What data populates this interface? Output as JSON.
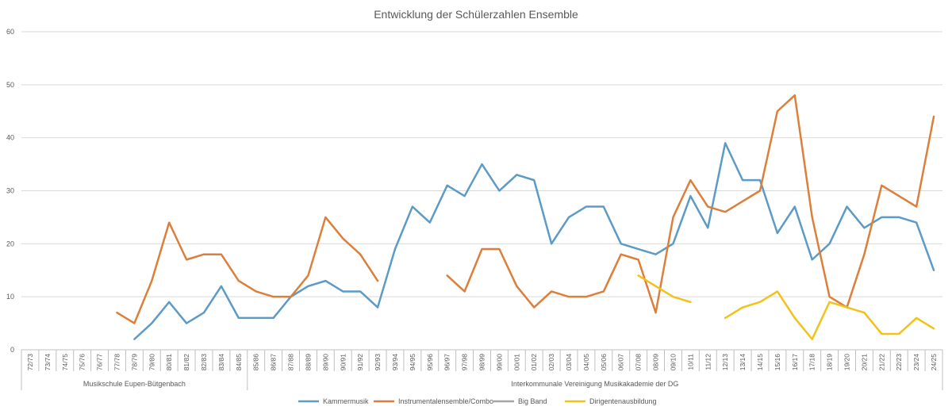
{
  "chart_data": {
    "type": "line",
    "title": "Entwicklung der Schülerzahlen Ensemble",
    "ylim": [
      0,
      60
    ],
    "yticks": [
      0,
      10,
      20,
      30,
      40,
      50,
      60
    ],
    "grid": true,
    "legend_position": "bottom",
    "categories": [
      "72/73",
      "73/74",
      "74/75",
      "75/76",
      "76/77",
      "77/78",
      "78/79",
      "79/80",
      "80/81",
      "81/82",
      "82/83",
      "83/84",
      "84/85",
      "85/86",
      "86/87",
      "87/88",
      "88/89",
      "89/90",
      "90/91",
      "91/92",
      "92/93",
      "93/94",
      "94/95",
      "95/96",
      "96/97",
      "97/98",
      "98/99",
      "99/00",
      "00/01",
      "01/02",
      "02/03",
      "03/04",
      "04/05",
      "05/06",
      "06/07",
      "07/08",
      "08/09",
      "09/10",
      "10/11",
      "11/12",
      "12/13",
      "13/14",
      "14/15",
      "15/16",
      "16/17",
      "17/18",
      "18/19",
      "19/20",
      "20/21",
      "21/22",
      "22/23",
      "23/24",
      "24/25"
    ],
    "category_groups": [
      {
        "label": "Musikschule Eupen-Bütgenbach",
        "start": 0,
        "end": 12
      },
      {
        "label": "Interkommunale Vereinigung Musikakademie der DG",
        "start": 13,
        "end": 52
      }
    ],
    "series": [
      {
        "name": "Kammermusik",
        "color": "#5b9bc6",
        "values": [
          null,
          null,
          null,
          null,
          null,
          null,
          2,
          5,
          9,
          5,
          7,
          12,
          6,
          6,
          6,
          10,
          12,
          13,
          11,
          11,
          8,
          19,
          27,
          24,
          31,
          29,
          35,
          30,
          33,
          32,
          20,
          25,
          27,
          27,
          20,
          19,
          18,
          20,
          29,
          23,
          39,
          32,
          32,
          22,
          27,
          17,
          20,
          27,
          23,
          25,
          25,
          24,
          15
        ]
      },
      {
        "name": "Instrumentalensemble/Combo",
        "color": "#dc7f3a",
        "values": [
          null,
          null,
          null,
          null,
          null,
          7,
          5,
          13,
          24,
          17,
          18,
          18,
          13,
          11,
          10,
          10,
          14,
          25,
          21,
          18,
          13,
          null,
          null,
          null,
          14,
          11,
          19,
          19,
          12,
          8,
          11,
          10,
          10,
          11,
          18,
          17,
          7,
          25,
          32,
          27,
          26,
          28,
          30,
          45,
          48,
          25,
          10,
          8,
          18,
          31,
          29,
          27,
          44
        ]
      },
      {
        "name": "Big Band",
        "color": "#a5a5a5",
        "values": [
          null,
          null,
          null,
          null,
          null,
          null,
          null,
          null,
          null,
          null,
          null,
          null,
          null,
          null,
          null,
          null,
          null,
          null,
          null,
          null,
          null,
          null,
          null,
          null,
          null,
          null,
          null,
          null,
          null,
          null,
          null,
          null,
          null,
          null,
          null,
          null,
          null,
          null,
          null,
          null,
          null,
          null,
          null,
          null,
          null,
          null,
          null,
          null,
          null,
          null,
          null,
          null,
          null
        ]
      },
      {
        "name": "Dirigentenausbildung",
        "color": "#f2c21a",
        "values": [
          null,
          null,
          null,
          null,
          null,
          null,
          null,
          null,
          null,
          null,
          null,
          null,
          null,
          null,
          null,
          null,
          null,
          null,
          null,
          null,
          null,
          null,
          null,
          null,
          null,
          null,
          null,
          null,
          null,
          null,
          null,
          null,
          null,
          null,
          null,
          14,
          12,
          10,
          9,
          null,
          6,
          8,
          9,
          11,
          6,
          2,
          9,
          8,
          7,
          3,
          3,
          6,
          4
        ]
      }
    ]
  }
}
